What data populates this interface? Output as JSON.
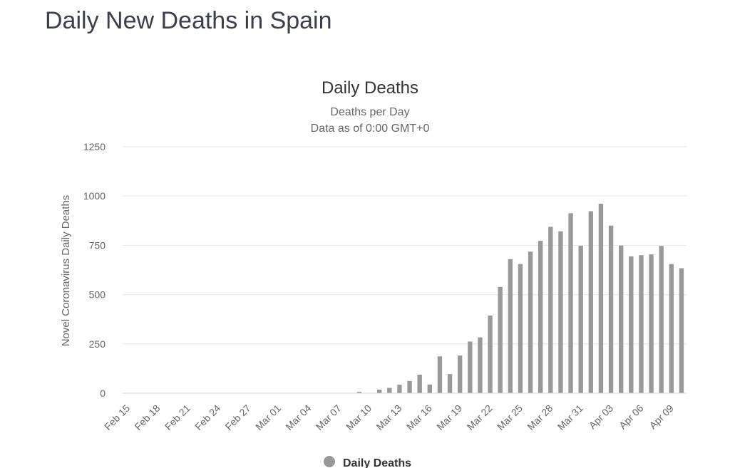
{
  "page": {
    "title": "Daily New Deaths in Spain"
  },
  "chart_data": {
    "type": "bar",
    "title": "Daily Deaths",
    "subtitle_lines": [
      "Deaths per Day",
      "Data as of 0:00 GMT+0"
    ],
    "ylabel": "Novel Coronavirus Daily Deaths",
    "xlabel": "",
    "ylim": [
      0,
      1250
    ],
    "yticks": [
      0,
      250,
      500,
      750,
      1000,
      1250
    ],
    "grid": true,
    "legend_position": "bottom-center",
    "colors": {
      "bar": "#999999",
      "grid": "#e6e6e6",
      "axis": "#ccd6eb",
      "text": "#666666",
      "title": "#333333"
    },
    "x_tick_labels": [
      "Feb 15",
      "Feb 18",
      "Feb 21",
      "Feb 24",
      "Feb 27",
      "Mar 01",
      "Mar 04",
      "Mar 07",
      "Mar 10",
      "Mar 13",
      "Mar 16",
      "Mar 19",
      "Mar 22",
      "Mar 25",
      "Mar 28",
      "Mar 31",
      "Apr 03",
      "Apr 06",
      "Apr 09"
    ],
    "categories": [
      "Feb 15",
      "Feb 16",
      "Feb 17",
      "Feb 18",
      "Feb 19",
      "Feb 20",
      "Feb 21",
      "Feb 22",
      "Feb 23",
      "Feb 24",
      "Feb 25",
      "Feb 26",
      "Feb 27",
      "Feb 28",
      "Feb 29",
      "Mar 01",
      "Mar 02",
      "Mar 03",
      "Mar 04",
      "Mar 05",
      "Mar 06",
      "Mar 07",
      "Mar 08",
      "Mar 09",
      "Mar 10",
      "Mar 11",
      "Mar 12",
      "Mar 13",
      "Mar 14",
      "Mar 15",
      "Mar 16",
      "Mar 17",
      "Mar 18",
      "Mar 19",
      "Mar 20",
      "Mar 21",
      "Mar 22",
      "Mar 23",
      "Mar 24",
      "Mar 25",
      "Mar 26",
      "Mar 27",
      "Mar 28",
      "Mar 29",
      "Mar 30",
      "Mar 31",
      "Apr 01",
      "Apr 02",
      "Apr 03",
      "Apr 04",
      "Apr 05",
      "Apr 06",
      "Apr 07",
      "Apr 08",
      "Apr 09",
      "Apr 10"
    ],
    "series": [
      {
        "name": "Daily Deaths",
        "values": [
          0,
          0,
          0,
          0,
          0,
          0,
          0,
          0,
          0,
          0,
          0,
          0,
          0,
          0,
          0,
          0,
          0,
          0,
          0,
          0,
          0,
          0,
          0,
          7,
          0,
          18,
          27,
          43,
          62,
          94,
          44,
          187,
          97,
          191,
          262,
          283,
          394,
          539,
          680,
          655,
          718,
          773,
          844,
          821,
          913,
          748,
          923,
          961,
          850,
          749,
          694,
          700,
          704,
          747,
          655,
          634
        ]
      }
    ],
    "legend": [
      {
        "label": "Daily Deaths",
        "color": "#999999"
      }
    ]
  }
}
